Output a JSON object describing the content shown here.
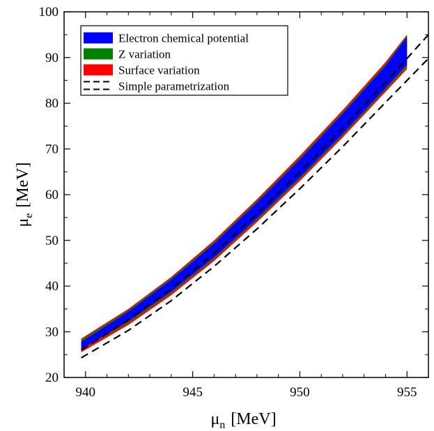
{
  "chart_data": {
    "type": "area",
    "xlabel": {
      "symbol": "μ",
      "sub": "n",
      "unit": "[MeV]"
    },
    "ylabel": {
      "symbol": "μ",
      "sub": "e",
      "unit": "[MeV]"
    },
    "xlim": [
      939,
      956
    ],
    "ylim": [
      20,
      100
    ],
    "xticks": [
      940,
      945,
      950,
      955
    ],
    "yticks": [
      20,
      30,
      40,
      50,
      60,
      70,
      80,
      90,
      100
    ],
    "grid": false,
    "legend_position": "top-left",
    "legend": [
      {
        "label": "Electron chemical potential",
        "color": "#0000ff",
        "style": "fill"
      },
      {
        "label": "Z variation",
        "color": "#008000",
        "style": "fill"
      },
      {
        "label": "Surface variation",
        "color": "#ff0000",
        "style": "fill"
      },
      {
        "label": "Simple parametrization",
        "color": "#000000",
        "style": "dashed"
      }
    ],
    "series": [
      {
        "name": "Surface variation",
        "kind": "band",
        "color": "#ff0000",
        "x": [
          939.8,
          942,
          944,
          946,
          948,
          950,
          952,
          954,
          955.0
        ],
        "lower": [
          25.5,
          31.5,
          38.0,
          45.5,
          54.0,
          63.0,
          72.5,
          82.5,
          87.5
        ],
        "upper": [
          28.5,
          35.0,
          42.0,
          50.0,
          59.0,
          68.5,
          78.5,
          89.0,
          95.0
        ]
      },
      {
        "name": "Z variation",
        "kind": "band",
        "color": "#008000",
        "x": [
          939.8,
          942,
          944,
          946,
          948,
          950,
          952,
          954,
          955.0
        ],
        "lower": [
          26.0,
          32.0,
          38.5,
          46.0,
          54.5,
          63.5,
          73.0,
          83.0,
          88.0
        ],
        "upper": [
          28.2,
          34.7,
          41.7,
          49.6,
          58.6,
          68.0,
          78.0,
          88.5,
          94.8
        ]
      },
      {
        "name": "Electron chemical potential",
        "kind": "band",
        "color": "#0000ff",
        "x": [
          939.8,
          942,
          944,
          946,
          948,
          950,
          952,
          954,
          955.0
        ],
        "lower": [
          26.2,
          32.3,
          38.8,
          46.3,
          54.8,
          63.8,
          73.3,
          83.3,
          88.5
        ],
        "upper": [
          27.8,
          34.4,
          41.4,
          49.3,
          58.3,
          67.7,
          77.7,
          88.2,
          94.5
        ]
      },
      {
        "name": "Simple parametrization",
        "kind": "dashed-pair",
        "color": "#000000",
        "x": [
          939.8,
          942,
          944,
          946,
          948,
          950,
          952,
          954,
          956
        ],
        "lower": [
          24.3,
          30.3,
          36.8,
          44.3,
          52.5,
          61.3,
          70.5,
          80.2,
          89.8
        ],
        "upper": [
          26.0,
          32.6,
          39.4,
          47.2,
          55.8,
          64.9,
          74.5,
          84.6,
          95.0
        ]
      }
    ]
  }
}
